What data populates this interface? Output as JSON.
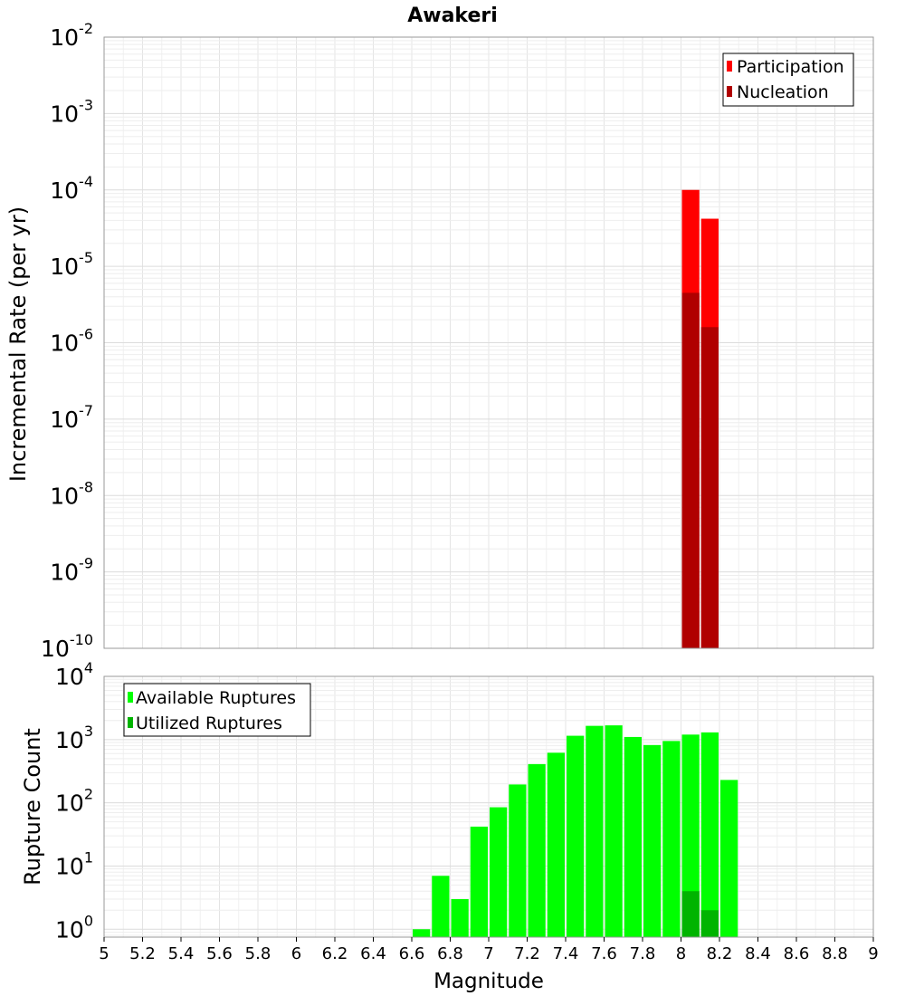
{
  "chart_data": [
    {
      "type": "bar",
      "title": "Awakeri",
      "ylabel": "Incremental Rate (per yr)",
      "y_scale": "log",
      "ylim": [
        1e-10,
        0.01
      ],
      "xlim": [
        5,
        9
      ],
      "bin_width": 0.1,
      "legend_position": "top-right",
      "grid": true,
      "series": [
        {
          "name": "Participation",
          "color": "#ff0000",
          "x": [
            8.05,
            8.15
          ],
          "values": [
            0.0001,
            4.2e-05
          ]
        },
        {
          "name": "Nucleation",
          "color": "#b00000",
          "x": [
            8.05,
            8.15
          ],
          "values": [
            4.5e-06,
            1.6e-06
          ]
        }
      ],
      "y_ticks": [
        {
          "base": "10",
          "exp": "-2"
        },
        {
          "base": "10",
          "exp": "-3"
        },
        {
          "base": "10",
          "exp": "-4"
        },
        {
          "base": "10",
          "exp": "-5"
        },
        {
          "base": "10",
          "exp": "-6"
        },
        {
          "base": "10",
          "exp": "-7"
        },
        {
          "base": "10",
          "exp": "-8"
        },
        {
          "base": "10",
          "exp": "-9"
        },
        {
          "base": "10",
          "exp": "-10"
        }
      ]
    },
    {
      "type": "bar",
      "xlabel": "Magnitude",
      "ylabel": "Rupture Count",
      "y_scale": "log",
      "ylim": [
        0.75,
        10000
      ],
      "xlim": [
        5,
        9
      ],
      "bin_width": 0.1,
      "legend_position": "top-left",
      "grid": true,
      "series": [
        {
          "name": "Available Ruptures",
          "color": "#00ff00",
          "x": [
            6.65,
            6.75,
            6.85,
            6.95,
            7.05,
            7.15,
            7.25,
            7.35,
            7.45,
            7.55,
            7.65,
            7.75,
            7.85,
            7.95,
            8.05,
            8.15,
            8.25
          ],
          "values": [
            1,
            7,
            3,
            42,
            85,
            195,
            410,
            620,
            1150,
            1650,
            1680,
            1100,
            820,
            950,
            1200,
            1300,
            230
          ]
        },
        {
          "name": "Utilized Ruptures",
          "color": "#00b400",
          "x": [
            8.05,
            8.15
          ],
          "values": [
            4,
            2
          ]
        }
      ],
      "y_ticks": [
        {
          "base": "10",
          "exp": "4"
        },
        {
          "base": "10",
          "exp": "3"
        },
        {
          "base": "10",
          "exp": "2"
        },
        {
          "base": "10",
          "exp": "1"
        },
        {
          "base": "10",
          "exp": "0"
        }
      ],
      "x_ticks": [
        "5",
        "5.2",
        "5.4",
        "5.6",
        "5.8",
        "6",
        "6.2",
        "6.4",
        "6.6",
        "6.8",
        "7",
        "7.2",
        "7.4",
        "7.6",
        "7.8",
        "8",
        "8.2",
        "8.4",
        "8.6",
        "8.8",
        "9"
      ]
    }
  ]
}
